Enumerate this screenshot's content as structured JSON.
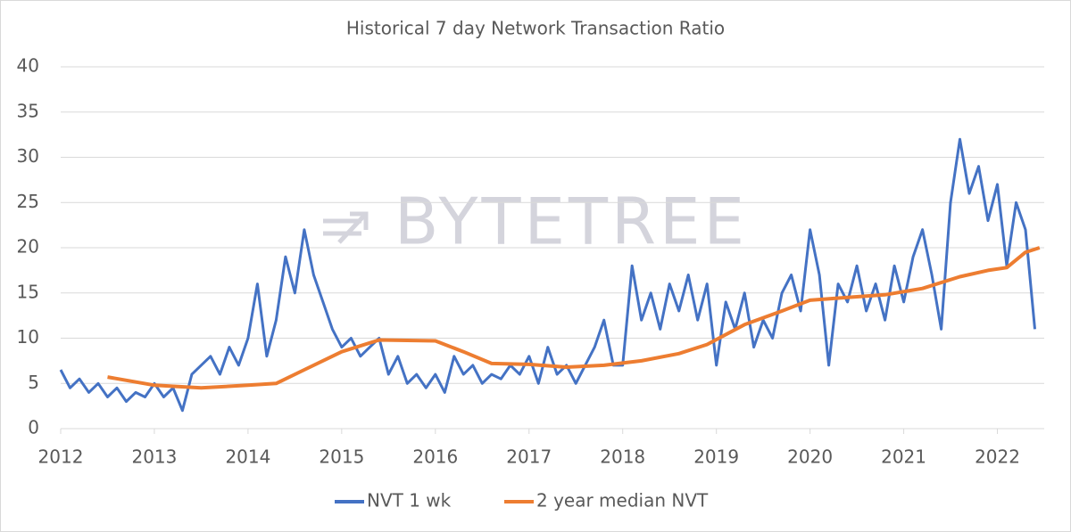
{
  "chart_data": {
    "type": "line",
    "title": "Historical 7 day Network Transaction Ratio",
    "annotation": "BYTETREE",
    "xlim": [
      2012,
      2022.5
    ],
    "xticks": [
      2012,
      2013,
      2014,
      2015,
      2016,
      2017,
      2018,
      2019,
      2020,
      2021,
      2022
    ],
    "ylim": [
      0,
      40
    ],
    "yticks": [
      0,
      5,
      10,
      15,
      20,
      25,
      30,
      35,
      40
    ],
    "grid": true,
    "legend": "bottom",
    "series": [
      {
        "name": "NVT 1 wk",
        "color": "#4472c4",
        "x": [
          2012.0,
          2012.1,
          2012.2,
          2012.3,
          2012.4,
          2012.5,
          2012.6,
          2012.7,
          2012.8,
          2012.9,
          2013.0,
          2013.1,
          2013.2,
          2013.3,
          2013.4,
          2013.5,
          2013.6,
          2013.7,
          2013.8,
          2013.9,
          2014.0,
          2014.1,
          2014.2,
          2014.3,
          2014.4,
          2014.5,
          2014.6,
          2014.7,
          2014.8,
          2014.9,
          2015.0,
          2015.1,
          2015.2,
          2015.3,
          2015.4,
          2015.5,
          2015.6,
          2015.7,
          2015.8,
          2015.9,
          2016.0,
          2016.1,
          2016.2,
          2016.3,
          2016.4,
          2016.5,
          2016.6,
          2016.7,
          2016.8,
          2016.9,
          2017.0,
          2017.1,
          2017.2,
          2017.3,
          2017.4,
          2017.5,
          2017.6,
          2017.7,
          2017.8,
          2017.9,
          2018.0,
          2018.1,
          2018.2,
          2018.3,
          2018.4,
          2018.5,
          2018.6,
          2018.7,
          2018.8,
          2018.9,
          2019.0,
          2019.1,
          2019.2,
          2019.3,
          2019.4,
          2019.5,
          2019.6,
          2019.7,
          2019.8,
          2019.9,
          2020.0,
          2020.1,
          2020.2,
          2020.3,
          2020.4,
          2020.5,
          2020.6,
          2020.7,
          2020.8,
          2020.9,
          2021.0,
          2021.1,
          2021.2,
          2021.3,
          2021.4,
          2021.5,
          2021.6,
          2021.7,
          2021.8,
          2021.9,
          2022.0,
          2022.1,
          2022.2,
          2022.3,
          2022.4
        ],
        "values": [
          6.5,
          4.5,
          5.5,
          4,
          5,
          3.5,
          4.5,
          3,
          4,
          3.5,
          5,
          3.5,
          4.5,
          2,
          6,
          7,
          8,
          6,
          9,
          7,
          10,
          16,
          8,
          12,
          19,
          15,
          22,
          17,
          14,
          11,
          9,
          10,
          8,
          9,
          10,
          6,
          8,
          5,
          6,
          4.5,
          6,
          4,
          8,
          6,
          7,
          5,
          6,
          5.5,
          7,
          6,
          8,
          5,
          9,
          6,
          7,
          5,
          7,
          9,
          12,
          7,
          7,
          18,
          12,
          15,
          11,
          16,
          13,
          17,
          12,
          16,
          7,
          14,
          11,
          15,
          9,
          12,
          10,
          15,
          17,
          13,
          22,
          17,
          7,
          16,
          14,
          18,
          13,
          16,
          12,
          18,
          14,
          19,
          22,
          17,
          11,
          25,
          32,
          26,
          29,
          23,
          27,
          18,
          25,
          22,
          11
        ]
      },
      {
        "name": "2 year median NVT",
        "color": "#ed7d31",
        "x": [
          2012.5,
          2013.0,
          2013.5,
          2014.0,
          2014.3,
          2014.6,
          2015.0,
          2015.4,
          2016.0,
          2016.3,
          2016.6,
          2017.0,
          2017.4,
          2017.8,
          2018.2,
          2018.6,
          2018.9,
          2019.3,
          2019.7,
          2020.0,
          2020.4,
          2020.8,
          2021.2,
          2021.6,
          2021.9,
          2022.1,
          2022.3,
          2022.45
        ],
        "values": [
          5.7,
          4.8,
          4.5,
          4.8,
          5.0,
          6.5,
          8.5,
          9.8,
          9.7,
          8.5,
          7.2,
          7.1,
          6.8,
          7.0,
          7.5,
          8.3,
          9.3,
          11.5,
          13,
          14.2,
          14.5,
          14.8,
          15.5,
          16.8,
          17.5,
          17.8,
          19.5,
          20
        ]
      }
    ]
  }
}
